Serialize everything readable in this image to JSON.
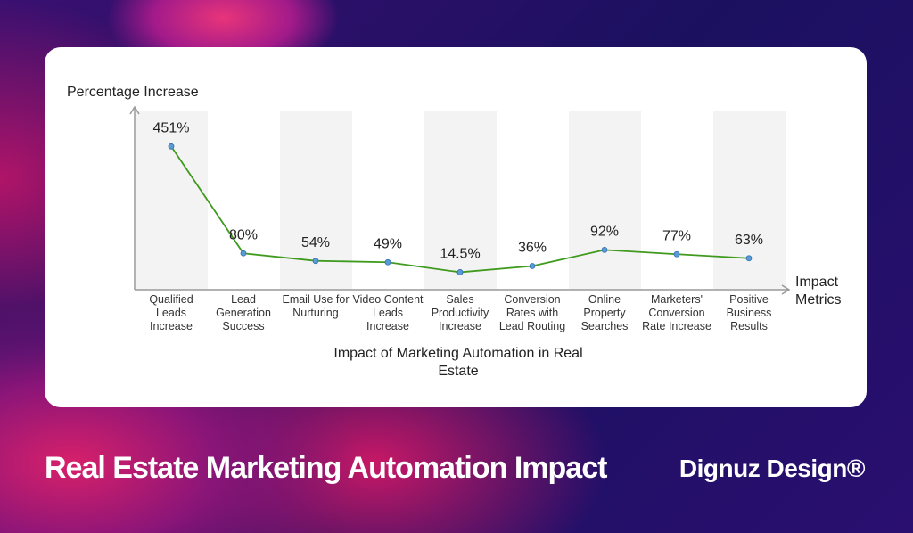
{
  "chart_data": {
    "type": "line",
    "y_label": "Percentage Increase",
    "x_label": "Impact Metrics",
    "caption": "Impact of Marketing Automation in Real Estate",
    "categories": [
      "Qualified Leads Increase",
      "Lead Generation Success",
      "Email Use for Nurturing",
      "Video Content Leads Increase",
      "Sales Productivity Increase",
      "Conversion Rates with Lead Routing",
      "Online Property Searches",
      "Marketers' Conversion Rate Increase",
      "Positive Business Results"
    ],
    "values": [
      451,
      80,
      54,
      49,
      14.5,
      36,
      92,
      77,
      63
    ],
    "value_labels": [
      "451%",
      "80%",
      "54%",
      "49%",
      "14.5%",
      "36%",
      "92%",
      "77%",
      "63%"
    ],
    "color": "#3f9a1e",
    "marker_color": "#5b9bd5",
    "ylim": [
      -46,
      588
    ]
  },
  "footer": {
    "title": "Real Estate Marketing Automation Impact",
    "brand": "Dignuz Design®"
  }
}
